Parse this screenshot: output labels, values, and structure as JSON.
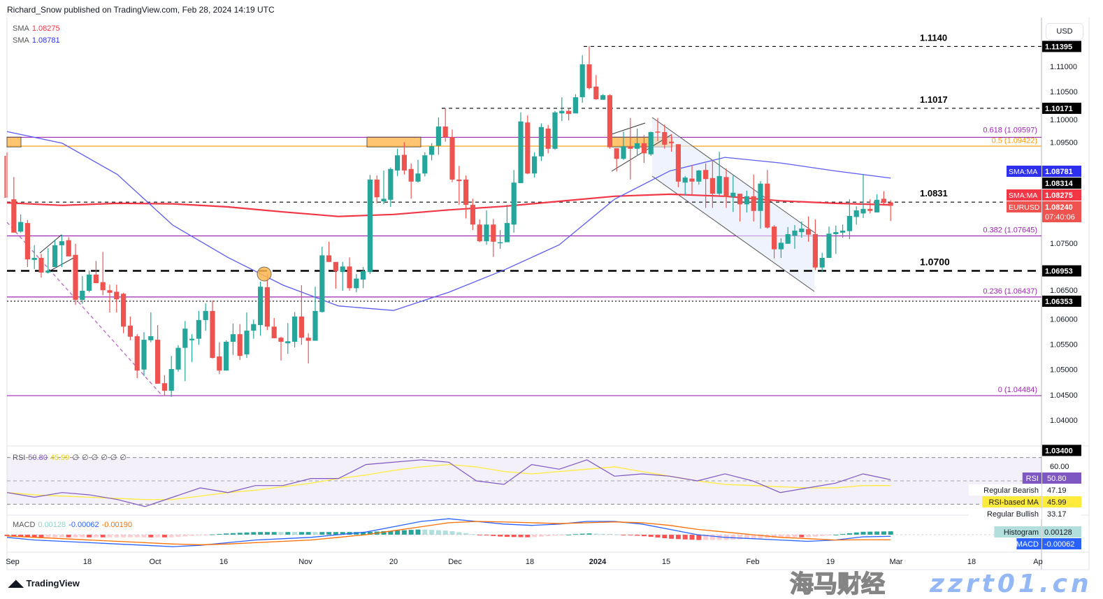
{
  "header": {
    "published": "Richard_Snow published on TradingView.com, Feb 28, 2024 14:19 UTC"
  },
  "legend": {
    "sma1_label": "SMA",
    "sma1_value": "1.08275",
    "sma2_label": "SMA",
    "sma2_value": "1.08781"
  },
  "currency": "USD",
  "footer": {
    "logo": "TradingView"
  },
  "watermark": {
    "text": "zzrt01.cn",
    "cn_text": "海马财经"
  },
  "colors": {
    "up": "#26a69a",
    "down": "#ef5350",
    "sma_fast": "#5b5bf5",
    "sma_slow": "#f23645",
    "fib": "#9c27b0",
    "fib_half": "#ff9800",
    "rsi": "#7e57c2",
    "rsi_ma": "#ffeb3b",
    "macd": "#2962ff",
    "signal": "#ff6d00"
  },
  "chart_data": {
    "type": "candlestick",
    "symbol": "EURUSD",
    "interval": "daily",
    "ylim": [
      1.034,
      1.119
    ],
    "y_ticks": [
      "1.11000",
      "1.10500",
      "1.10000",
      "1.09500",
      "1.07500",
      "1.06500",
      "1.06000",
      "1.05500",
      "1.05000",
      "1.04500",
      "1.04000"
    ],
    "y_tick_values": [
      1.11,
      1.105,
      1.1,
      1.095,
      1.075,
      1.065,
      1.06,
      1.055,
      1.05,
      1.045,
      1.04
    ],
    "x_ticks": [
      "Sep",
      "18",
      "Oct",
      "16",
      "Nov",
      "20",
      "Dec",
      "18",
      "2024",
      "15",
      "Feb",
      "19",
      "Mar",
      "18",
      "Ap"
    ],
    "candles_ohlc": [
      [
        1.0923,
        1.093,
        1.084,
        1.084
      ],
      [
        1.0837,
        1.0881,
        1.0771,
        1.0771
      ],
      [
        1.0773,
        1.0807,
        1.0771,
        1.0792
      ],
      [
        1.079,
        1.0796,
        1.0703,
        1.0718
      ],
      [
        1.0717,
        1.0746,
        1.0699,
        1.0721
      ],
      [
        1.0721,
        1.0729,
        1.0682,
        1.0692
      ],
      [
        1.0692,
        1.074,
        1.069,
        1.0696
      ],
      [
        1.0703,
        1.0757,
        1.0703,
        1.0746
      ],
      [
        1.0746,
        1.0767,
        1.0703,
        1.0754
      ],
      [
        1.0756,
        1.0762,
        1.0724,
        1.0724
      ],
      [
        1.0727,
        1.0749,
        1.0628,
        1.0638
      ],
      [
        1.0638,
        1.0685,
        1.063,
        1.0656
      ],
      [
        1.0656,
        1.0696,
        1.0653,
        1.0688
      ],
      [
        1.0688,
        1.0715,
        1.0671,
        1.0671
      ],
      [
        1.0673,
        1.0733,
        1.0647,
        1.0657
      ],
      [
        1.0657,
        1.0668,
        1.0613,
        1.0652
      ],
      [
        1.0654,
        1.0668,
        1.0613,
        1.0639
      ],
      [
        1.065,
        1.0652,
        1.0572,
        1.0585
      ],
      [
        1.0587,
        1.0605,
        1.0558,
        1.0565
      ],
      [
        1.0566,
        1.057,
        1.0483,
        1.0498
      ],
      [
        1.05,
        1.0574,
        1.0487,
        1.0559
      ],
      [
        1.0558,
        1.0613,
        1.0554,
        1.0566
      ],
      [
        1.0559,
        1.0588,
        1.0472,
        1.0472
      ],
      [
        1.0473,
        1.0489,
        1.0448,
        1.0458
      ],
      [
        1.0458,
        1.0527,
        1.0446,
        1.0501
      ],
      [
        1.05,
        1.0548,
        1.0496,
        1.0543
      ],
      [
        1.0543,
        1.0596,
        1.0477,
        1.0581
      ],
      [
        1.0558,
        1.057,
        1.0515,
        1.0561
      ],
      [
        1.0561,
        1.0616,
        1.0549,
        1.0598
      ],
      [
        1.0598,
        1.0631,
        1.0577,
        1.0616
      ],
      [
        1.0616,
        1.0637,
        1.0522,
        1.0523
      ],
      [
        1.0526,
        1.0554,
        1.0491,
        1.0498
      ],
      [
        1.0498,
        1.0558,
        1.0498,
        1.0555
      ],
      [
        1.0555,
        1.0591,
        1.0529,
        1.057
      ],
      [
        1.057,
        1.059,
        1.0519,
        1.0527
      ],
      [
        1.053,
        1.0613,
        1.0523,
        1.0577
      ],
      [
        1.0577,
        1.0599,
        1.0561,
        1.059
      ],
      [
        1.0588,
        1.0674,
        1.0567,
        1.0664
      ],
      [
        1.0663,
        1.069,
        1.0578,
        1.0585
      ],
      [
        1.0585,
        1.0602,
        1.0562,
        1.0562
      ],
      [
        1.0563,
        1.0565,
        1.0518,
        1.0555
      ],
      [
        1.0552,
        1.0592,
        1.0531,
        1.0556
      ],
      [
        1.0555,
        1.0614,
        1.0544,
        1.0605
      ],
      [
        1.0605,
        1.0667,
        1.0549,
        1.0563
      ],
      [
        1.0563,
        1.0572,
        1.0512,
        1.0557
      ],
      [
        1.0557,
        1.0664,
        1.0557,
        1.0616
      ],
      [
        1.0614,
        1.0743,
        1.0613,
        1.0726
      ],
      [
        1.0726,
        1.0753,
        1.0713,
        1.0713
      ],
      [
        1.0713,
        1.0713,
        1.066,
        1.0695
      ],
      [
        1.0693,
        1.0713,
        1.0656,
        1.0704
      ],
      [
        1.0704,
        1.0722,
        1.0656,
        1.0661
      ],
      [
        1.0661,
        1.0689,
        1.0653,
        1.068
      ],
      [
        1.0678,
        1.0703,
        1.0661,
        1.0695
      ],
      [
        1.0693,
        1.0885,
        1.0689,
        1.0876
      ],
      [
        1.0876,
        1.0884,
        1.0829,
        1.0841
      ],
      [
        1.0833,
        1.0894,
        1.0827,
        1.0838
      ],
      [
        1.0836,
        1.09,
        1.0822,
        1.0897
      ],
      [
        1.0894,
        1.0937,
        1.0883,
        1.0924
      ],
      [
        1.0925,
        1.095,
        1.0886,
        1.0894
      ],
      [
        1.0897,
        1.0908,
        1.0838,
        1.0872
      ],
      [
        1.0872,
        1.0915,
        1.087,
        1.0888
      ],
      [
        1.0888,
        1.093,
        1.0882,
        1.0924
      ],
      [
        1.0925,
        1.0948,
        1.0914,
        1.0942
      ],
      [
        1.0943,
        1.0999,
        1.0925,
        1.0981
      ],
      [
        1.0981,
        1.1017,
        1.0951,
        1.096
      ],
      [
        1.096,
        1.0975,
        1.0871,
        1.0876
      ],
      [
        1.0876,
        1.0903,
        1.0826,
        1.0873
      ],
      [
        1.0876,
        1.0884,
        1.0799,
        1.0826
      ],
      [
        1.0826,
        1.0838,
        1.0776,
        1.0787
      ],
      [
        1.0787,
        1.0797,
        1.0752,
        1.0754
      ],
      [
        1.0754,
        1.0815,
        1.0747,
        1.0787
      ],
      [
        1.0787,
        1.0798,
        1.0723,
        1.0753
      ],
      [
        1.0751,
        1.0776,
        1.0739,
        1.0752
      ],
      [
        1.0752,
        1.0826,
        1.0753,
        1.079
      ],
      [
        1.0787,
        1.0895,
        1.0771,
        1.087
      ],
      [
        1.0869,
        1.1009,
        1.0869,
        1.0991
      ],
      [
        1.0989,
        1.1003,
        1.0887,
        1.0888
      ],
      [
        1.0888,
        1.093,
        1.088,
        1.0922
      ],
      [
        1.0922,
        1.0987,
        1.0913,
        1.098
      ],
      [
        1.0977,
        1.0984,
        1.0928,
        1.0937
      ],
      [
        1.0937,
        1.1012,
        1.0935,
        1.1009
      ],
      [
        1.1007,
        1.1039,
        1.0992,
        1.1012
      ],
      [
        1.1012,
        1.1018,
        1.0993,
        1.1006
      ],
      [
        1.1007,
        1.1045,
        1.1007,
        1.1039
      ],
      [
        1.1039,
        1.1122,
        1.1028,
        1.1104
      ],
      [
        1.1104,
        1.114,
        1.1054,
        1.1057
      ],
      [
        1.106,
        1.1083,
        1.1034,
        1.1035
      ],
      [
        1.1034,
        1.1045,
        1.1034,
        1.1043
      ],
      [
        1.1043,
        1.1045,
        1.0937,
        1.094
      ],
      [
        1.0938,
        1.0938,
        1.0892,
        1.0917
      ],
      [
        1.0917,
        1.0971,
        1.0915,
        1.0942
      ],
      [
        1.0942,
        1.0998,
        1.0876,
        1.0937
      ],
      [
        1.0937,
        1.0977,
        1.0923,
        1.0948
      ],
      [
        1.0948,
        1.0964,
        1.0909,
        1.0928
      ],
      [
        1.0926,
        1.0971,
        1.0923,
        1.097
      ],
      [
        1.0971,
        1.0998,
        1.0952,
        1.097
      ],
      [
        1.097,
        1.0985,
        1.0937,
        1.0945
      ],
      [
        1.0951,
        1.0966,
        1.0931,
        1.0948
      ],
      [
        1.0946,
        1.0946,
        1.0861,
        1.0872
      ],
      [
        1.087,
        1.0883,
        1.0845,
        1.088
      ],
      [
        1.0878,
        1.0905,
        1.0845,
        1.0872
      ],
      [
        1.0872,
        1.0895,
        1.0866,
        1.0894
      ],
      [
        1.0895,
        1.0908,
        1.082,
        1.0877
      ],
      [
        1.0879,
        1.0915,
        1.082,
        1.0848
      ],
      [
        1.0848,
        1.0931,
        1.0845,
        1.0883
      ],
      [
        1.0881,
        1.0898,
        1.082,
        1.0842
      ],
      [
        1.0842,
        1.0884,
        1.0812,
        1.085
      ],
      [
        1.0848,
        1.0848,
        1.0793,
        1.0827
      ],
      [
        1.0827,
        1.0854,
        1.0811,
        1.0843
      ],
      [
        1.0843,
        1.0886,
        1.0793,
        1.0814
      ],
      [
        1.0814,
        1.0873,
        1.0779,
        1.0868
      ],
      [
        1.0868,
        1.0895,
        1.0779,
        1.0781
      ],
      [
        1.0783,
        1.0786,
        1.072,
        1.0738
      ],
      [
        1.0738,
        1.076,
        1.0721,
        1.0751
      ],
      [
        1.0749,
        1.0782,
        1.0749,
        1.0768
      ],
      [
        1.0765,
        1.0786,
        1.0739,
        1.0775
      ],
      [
        1.0772,
        1.0793,
        1.0761,
        1.0779
      ],
      [
        1.0778,
        1.0803,
        1.0753,
        1.0767
      ],
      [
        1.0768,
        1.0797,
        1.0697,
        1.0702
      ],
      [
        1.0702,
        1.0731,
        1.0693,
        1.0721
      ],
      [
        1.0721,
        1.0783,
        1.0721,
        1.0769
      ],
      [
        1.0768,
        1.0785,
        1.0729,
        1.0772
      ],
      [
        1.0771,
        1.0787,
        1.0761,
        1.0775
      ],
      [
        1.0774,
        1.0837,
        1.0758,
        1.0804
      ],
      [
        1.0802,
        1.0823,
        1.0787,
        1.0815
      ],
      [
        1.0809,
        1.0887,
        1.08,
        1.0818
      ],
      [
        1.0818,
        1.0837,
        1.0809,
        1.0814
      ],
      [
        1.0811,
        1.0847,
        1.0811,
        1.0836
      ],
      [
        1.0838,
        1.0853,
        1.0828,
        1.083
      ],
      [
        1.0831,
        1.0835,
        1.0794,
        1.0824
      ]
    ],
    "sma_fast": [
      1.0971,
      1.0948,
      1.0886,
      1.0786,
      1.0722,
      1.0667,
      1.0626,
      1.0617,
      1.0653,
      1.0697,
      1.0747,
      1.0837,
      1.0893,
      1.092,
      1.0909,
      1.0893,
      1.0879
    ],
    "sma_slow": [
      1.083,
      1.0825,
      1.0829,
      1.0828,
      1.0822,
      1.0812,
      1.0803,
      1.0807,
      1.0816,
      1.0823,
      1.0833,
      1.0843,
      1.0847,
      1.0843,
      1.0834,
      1.0829,
      1.0826
    ],
    "levels": [
      {
        "label": "1.1140",
        "price": 1.11395,
        "badge": "1.11395",
        "style": "dashed"
      },
      {
        "label": "1.1017",
        "price": 1.10171,
        "badge": "1.10171",
        "style": "dashed"
      },
      {
        "label": "1.0831",
        "price": 1.08314,
        "badge": "1.08314",
        "style": "dashed"
      },
      {
        "label": "1.0700",
        "price": 1.06953,
        "badge": "1.06953",
        "style": "thick-dashed"
      },
      {
        "label": "",
        "price": 1.06353,
        "badge": "1.06353",
        "style": "dotted"
      }
    ],
    "fib_levels": [
      {
        "label": "0.618 (1.09597)",
        "price": 1.09597,
        "color": "#9c27b0"
      },
      {
        "label": "0.5 (1.09422)",
        "price": 1.09422,
        "color": "#ff9800"
      },
      {
        "label": "0.382 (1.07645)",
        "price": 1.07645,
        "color": "#9c27b0"
      },
      {
        "label": "0.236 (1.06437)",
        "price": 1.06437,
        "color": "#9c27b0"
      },
      {
        "label": "0 (1.04484)",
        "price": 1.04484,
        "color": "#9c27b0"
      }
    ],
    "price_badges": [
      {
        "tag": "SMA:MA",
        "value": "1.08781",
        "price": 1.08781,
        "color": "#2f2ff0"
      },
      {
        "tag": "SMA:MA",
        "value": "1.08275",
        "price": 1.08275,
        "color": "#f23645"
      },
      {
        "tag": "EURUSD",
        "value": "1.08240",
        "countdown": "07:40:06",
        "price": 1.0824,
        "color": "#ef5350"
      },
      {
        "tag": "",
        "value": "1.03400",
        "price": 1.034,
        "color": "#000000"
      }
    ],
    "rsi": {
      "legend": {
        "name": "RSI",
        "value": "50.80",
        "ma": "45.99",
        "extras": [
          "∅",
          "∅",
          "∅",
          "∅",
          "∅",
          "∅"
        ]
      },
      "levels": [
        70,
        50,
        30
      ],
      "axis_label": "60.00",
      "labels": [
        {
          "tag": "RSI",
          "value": "50.80"
        },
        {
          "tag": "Regular Bearish",
          "value": "47.19"
        },
        {
          "tag": "RSI-based MA",
          "value": "45.99"
        },
        {
          "tag": "Regular Bullish",
          "value": "33.17"
        }
      ],
      "values": [
        40,
        36,
        40,
        38,
        34,
        28,
        36,
        44,
        40,
        46,
        46,
        52,
        52,
        64,
        66,
        68,
        66,
        50,
        47,
        64,
        60,
        68,
        54,
        56,
        54,
        50,
        56,
        50,
        40,
        44,
        48,
        56,
        51
      ],
      "ma": [
        40,
        38,
        37,
        36,
        35,
        34,
        34,
        37,
        40,
        42,
        45,
        48,
        52,
        55,
        59,
        62,
        64,
        62,
        58,
        56,
        58,
        60,
        62,
        58,
        54,
        50,
        47,
        46,
        45,
        44,
        44,
        46,
        46
      ]
    },
    "macd": {
      "legend": {
        "name": "MACD",
        "histogram": "0.00128",
        "macd": "-0.00062",
        "signal": "-0.00190"
      },
      "labels": [
        {
          "tag": "Histogram",
          "value": "0.00128"
        },
        {
          "tag": "MACD",
          "value": "-0.00062"
        }
      ],
      "macd": [
        -0.001,
        -0.002,
        -0.0025,
        -0.003,
        -0.0035,
        -0.004,
        -0.0045,
        -0.004,
        -0.003,
        -0.002,
        -0.0015,
        -0.001,
        0,
        0.001,
        0.003,
        0.005,
        0.006,
        0.005,
        0.004,
        0.0035,
        0.004,
        0.005,
        0.005,
        0.004,
        0.002,
        0,
        -0.001,
        -0.0015,
        -0.002,
        -0.0025,
        -0.002,
        -0.0008,
        -0.00062
      ],
      "signal": [
        -0.0005,
        -0.001,
        -0.0015,
        -0.002,
        -0.0025,
        -0.003,
        -0.0035,
        -0.0038,
        -0.0035,
        -0.003,
        -0.0025,
        -0.002,
        -0.001,
        0,
        0.0015,
        0.003,
        0.0045,
        0.005,
        0.0048,
        0.0045,
        0.0042,
        0.0045,
        0.0048,
        0.0045,
        0.0035,
        0.002,
        0.001,
        0,
        -0.001,
        -0.0015,
        -0.002,
        -0.0019,
        -0.0019
      ]
    }
  }
}
